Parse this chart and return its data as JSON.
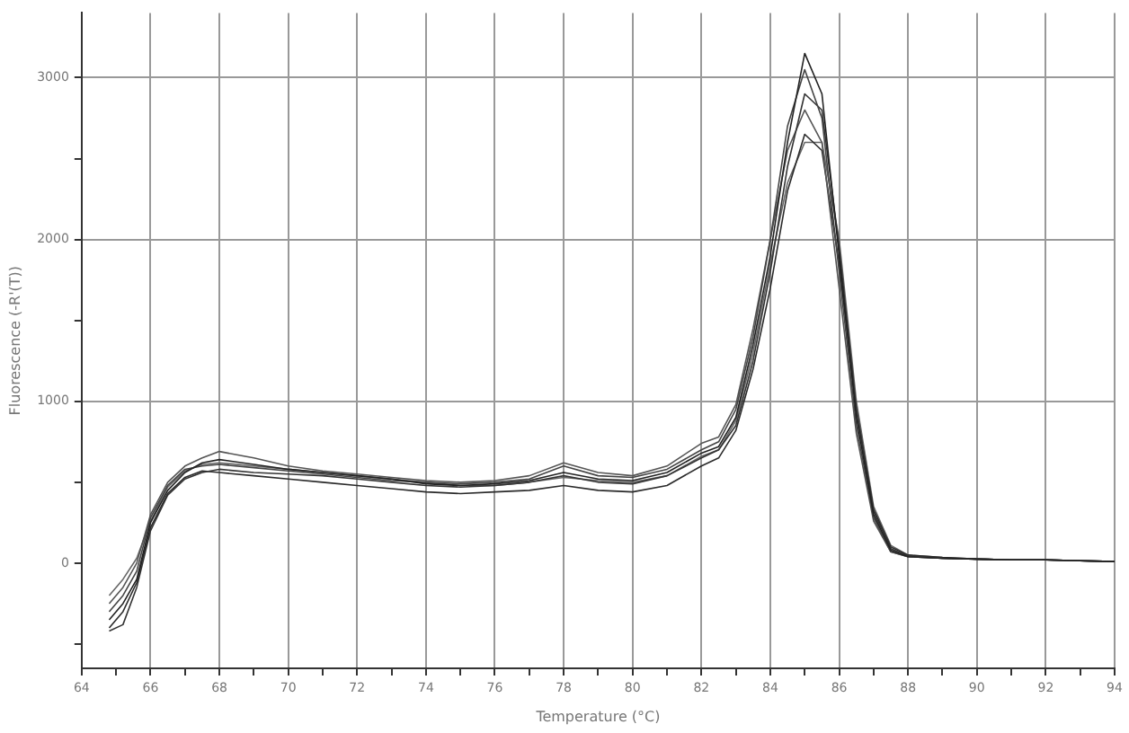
{
  "chart_data": {
    "type": "line",
    "xlabel": "Temperature (°C)",
    "ylabel": "Fluorescence (-R'(T))",
    "x": [
      64.8,
      65.2,
      65.6,
      66,
      66.5,
      67,
      67.5,
      68,
      69,
      70,
      71,
      72,
      73,
      74,
      75,
      76,
      77,
      78,
      79,
      80,
      81,
      82,
      82.5,
      83,
      83.5,
      84,
      84.5,
      85,
      85.5,
      86,
      86.5,
      87,
      87.5,
      88,
      89,
      90,
      91,
      92,
      93,
      94
    ],
    "series": [
      {
        "color": "#222222",
        "values": [
          -350,
          -250,
          -100,
          250,
          450,
          560,
          620,
          640,
          610,
          580,
          560,
          540,
          520,
          490,
          480,
          490,
          510,
          560,
          520,
          510,
          560,
          680,
          720,
          900,
          1350,
          1900,
          2600,
          3150,
          2900,
          1900,
          900,
          300,
          80,
          40,
          30,
          25,
          20,
          20,
          15,
          10
        ]
      },
      {
        "color": "#444444",
        "values": [
          -300,
          -200,
          -50,
          280,
          480,
          580,
          600,
          610,
          590,
          570,
          550,
          530,
          510,
          500,
          490,
          500,
          520,
          600,
          540,
          530,
          580,
          700,
          750,
          950,
          1400,
          2000,
          2700,
          3050,
          2750,
          1800,
          850,
          280,
          70,
          40,
          30,
          25,
          20,
          20,
          15,
          10
        ]
      },
      {
        "color": "#333333",
        "values": [
          -420,
          -380,
          -150,
          200,
          420,
          520,
          560,
          580,
          560,
          550,
          540,
          520,
          500,
          480,
          470,
          480,
          500,
          540,
          500,
          490,
          540,
          650,
          700,
          850,
          1250,
          1800,
          2450,
          2900,
          2800,
          1950,
          950,
          320,
          90,
          45,
          30,
          25,
          20,
          20,
          15,
          10
        ]
      },
      {
        "color": "#555555",
        "values": [
          -250,
          -150,
          0,
          300,
          500,
          600,
          650,
          690,
          650,
          600,
          570,
          550,
          530,
          510,
          500,
          510,
          540,
          620,
          560,
          540,
          600,
          740,
          780,
          980,
          1450,
          2000,
          2550,
          2800,
          2600,
          1700,
          800,
          260,
          70,
          40,
          30,
          25,
          20,
          20,
          15,
          10
        ]
      },
      {
        "color": "#2a2a2a",
        "values": [
          -400,
          -300,
          -120,
          220,
          430,
          530,
          570,
          560,
          540,
          520,
          500,
          480,
          460,
          440,
          430,
          440,
          450,
          480,
          450,
          440,
          480,
          600,
          650,
          820,
          1200,
          1700,
          2300,
          2650,
          2550,
          1850,
          950,
          330,
          100,
          50,
          35,
          25,
          20,
          20,
          15,
          10
        ]
      },
      {
        "color": "#666666",
        "values": [
          -200,
          -100,
          30,
          260,
          470,
          570,
          610,
          620,
          600,
          580,
          560,
          540,
          520,
          500,
          480,
          480,
          500,
          530,
          510,
          500,
          540,
          660,
          700,
          880,
          1300,
          1850,
          2350,
          2600,
          2600,
          2000,
          1000,
          350,
          110,
          50,
          35,
          25,
          20,
          20,
          15,
          10
        ]
      }
    ],
    "xlim": [
      64,
      94
    ],
    "xticks": [
      64,
      {
        "value": 65,
        "label": null
      },
      66,
      {
        "value": 67,
        "label": null
      },
      68,
      {
        "value": 69,
        "label": null
      },
      70,
      {
        "value": 71,
        "label": null
      },
      72,
      {
        "value": 73,
        "label": null
      },
      74,
      {
        "value": 75,
        "label": null
      },
      76,
      {
        "value": 77,
        "label": null
      },
      78,
      {
        "value": 79,
        "label": null
      },
      80,
      {
        "value": 81,
        "label": null
      },
      82,
      {
        "value": 83,
        "label": null
      },
      84,
      {
        "value": 85,
        "label": null
      },
      86,
      {
        "value": 87,
        "label": null
      },
      88,
      {
        "value": 89,
        "label": null
      },
      90,
      {
        "value": 91,
        "label": null
      },
      92,
      {
        "value": 93,
        "label": null
      },
      94
    ],
    "ylim": [
      -650,
      3400
    ],
    "yticks": [
      {
        "value": -500,
        "label": null
      },
      0,
      {
        "value": 500,
        "label": null
      },
      1000,
      {
        "value": 1500,
        "label": null
      },
      2000,
      {
        "value": 2500,
        "label": null
      },
      3000
    ],
    "grid": true,
    "legend": false,
    "marker": "none",
    "line_style": "solid"
  }
}
